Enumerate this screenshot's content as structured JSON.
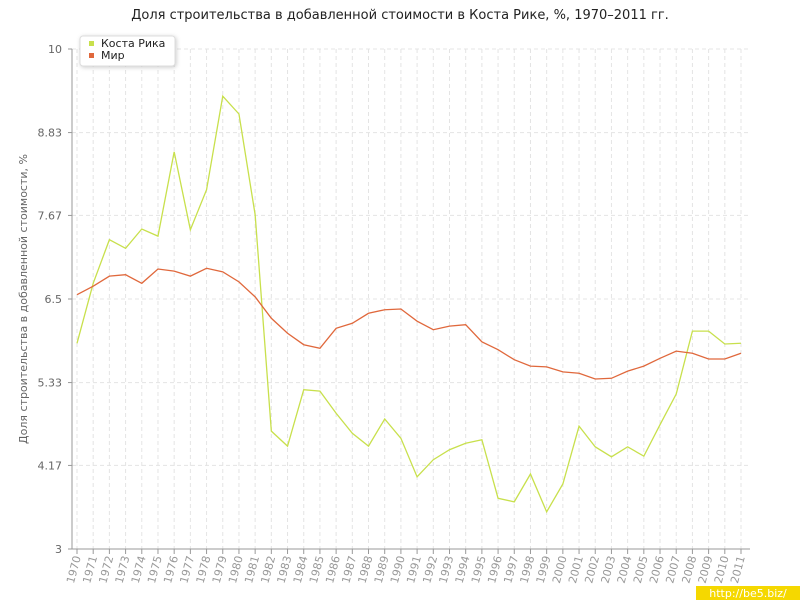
{
  "chart_data": {
    "type": "line",
    "title": "Доля строительства в добавленной стоимости в Коста Рике, %, 1970–2011 гг.",
    "y_label": "Доля строительства в добавленной стоимости, %",
    "categories": [
      "1970",
      "1971",
      "1972",
      "1973",
      "1974",
      "1975",
      "1976",
      "1977",
      "1978",
      "1979",
      "1980",
      "1981",
      "1982",
      "1983",
      "1984",
      "1985",
      "1986",
      "1987",
      "1988",
      "1989",
      "1990",
      "1991",
      "1992",
      "1993",
      "1994",
      "1995",
      "1996",
      "1997",
      "1998",
      "1999",
      "2000",
      "2001",
      "2002",
      "2003",
      "2004",
      "2005",
      "2006",
      "2007",
      "2008",
      "2009",
      "2010",
      "2011"
    ],
    "series": [
      {
        "name": "Коста Рика",
        "color": "#c8e04c",
        "values": [
          5.88,
          6.72,
          7.33,
          7.21,
          7.48,
          7.38,
          8.56,
          7.47,
          8.03,
          9.34,
          9.09,
          7.68,
          4.65,
          4.44,
          5.23,
          5.21,
          4.9,
          4.62,
          4.44,
          4.82,
          4.55,
          4.01,
          4.25,
          4.39,
          4.48,
          4.53,
          3.71,
          3.66,
          4.05,
          3.52,
          3.91,
          4.72,
          4.43,
          4.29,
          4.43,
          4.3,
          4.74,
          5.17,
          6.05,
          6.05,
          5.87,
          5.88
        ]
      },
      {
        "name": "Мир",
        "color": "#e0683c",
        "values": [
          6.56,
          6.68,
          6.82,
          6.84,
          6.72,
          6.92,
          6.89,
          6.82,
          6.93,
          6.88,
          6.74,
          6.53,
          6.23,
          6.02,
          5.86,
          5.81,
          6.09,
          6.16,
          6.3,
          6.35,
          6.36,
          6.19,
          6.07,
          6.12,
          6.14,
          5.9,
          5.79,
          5.65,
          5.56,
          5.55,
          5.48,
          5.46,
          5.38,
          5.39,
          5.49,
          5.56,
          5.67,
          5.77,
          5.74,
          5.66,
          5.66,
          5.74
        ]
      }
    ],
    "ylim": [
      3,
      10
    ],
    "yticks": [
      3,
      4.17,
      5.33,
      6.5,
      7.67,
      8.83,
      10
    ],
    "grid": true,
    "legend": "top-left",
    "watermark": "http://be5.biz/"
  }
}
